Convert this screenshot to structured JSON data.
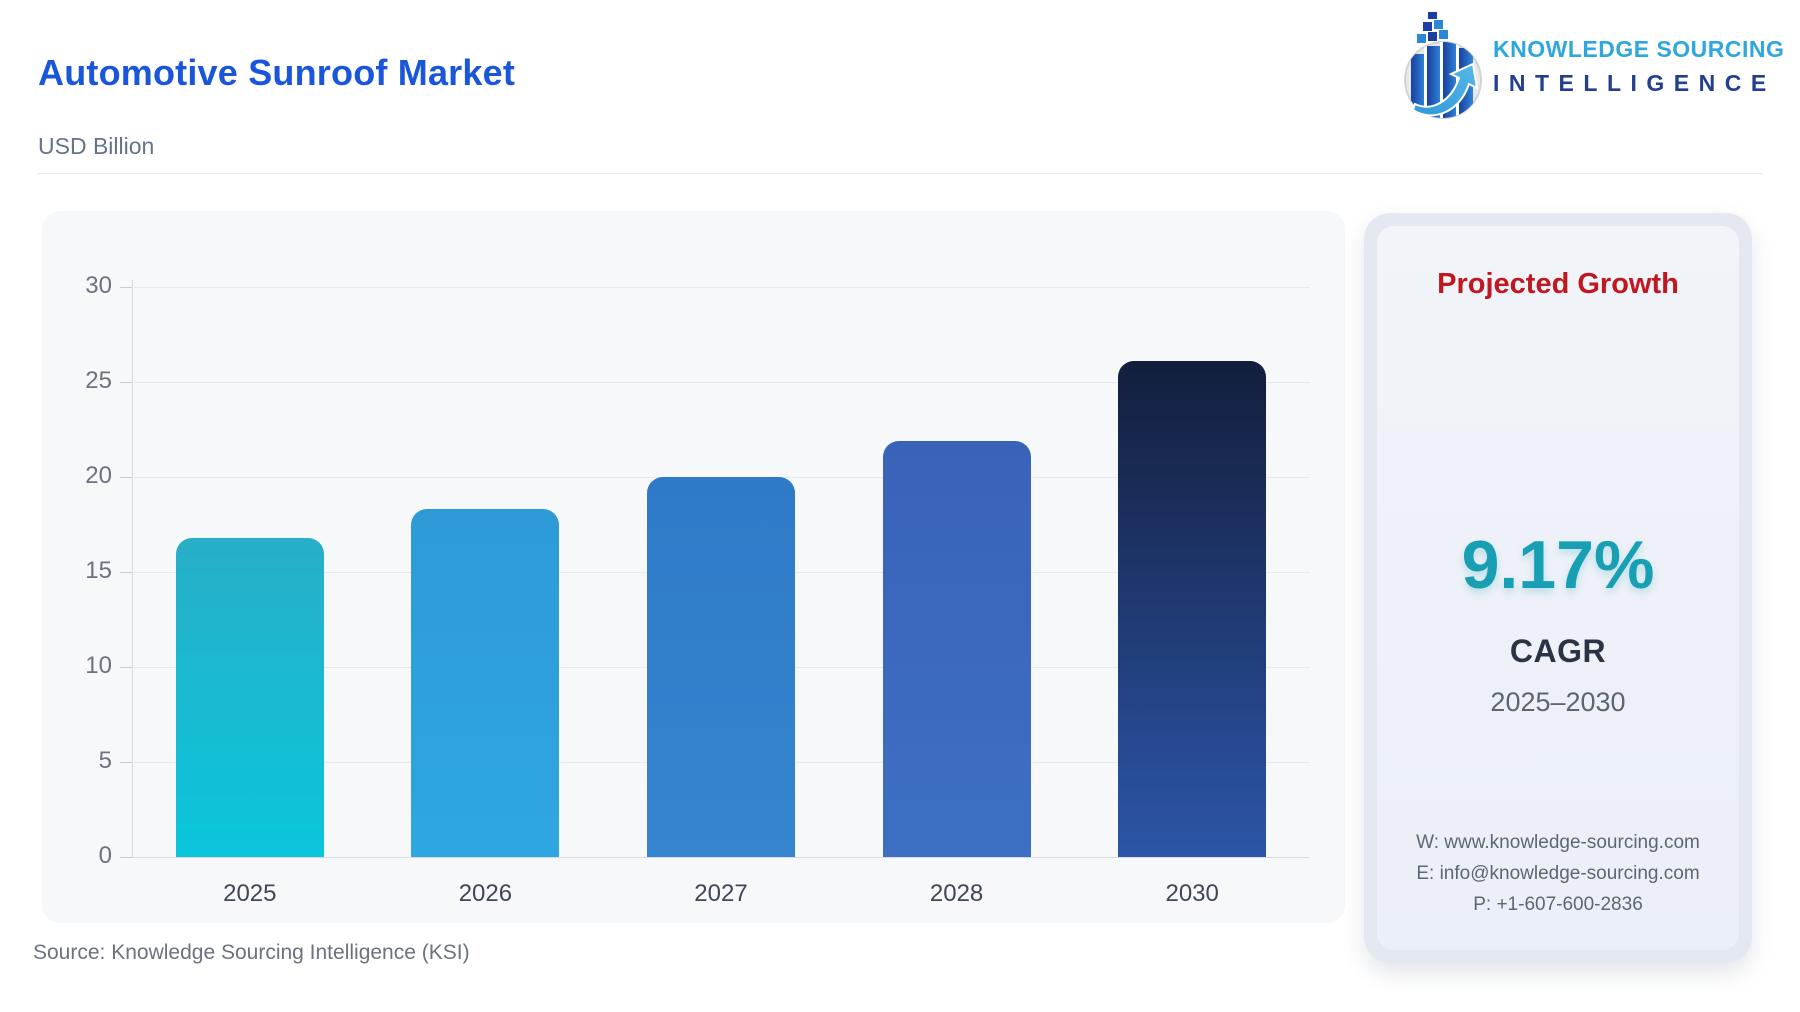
{
  "header": {
    "title": "Automotive Sunroof Market",
    "subtitle": "USD Billion"
  },
  "logo": {
    "line1": "KNOWLEDGE SOURCING",
    "line2": "INTELLIGENCE"
  },
  "chart_data": {
    "type": "bar",
    "title": "Automotive Sunroof Market",
    "ylabel": "USD Billion",
    "categories": [
      "2025",
      "2026",
      "2027",
      "2028",
      "2030"
    ],
    "values": [
      16.8,
      18.3,
      20.0,
      21.9,
      26.1
    ],
    "ylim": [
      0,
      30
    ],
    "ytick_interval": 5,
    "grid": true,
    "legend": "none",
    "bar_colors": [
      {
        "top": "#28aec8",
        "bottom": "#0ac6da"
      },
      {
        "top": "#2e9ad8",
        "bottom": "#2ea7e0"
      },
      {
        "top": "#2f7ac8",
        "bottom": "#3585d0"
      },
      {
        "top": "#3963b8",
        "bottom": "#3e6fc2"
      },
      {
        "top": "#131e3c",
        "bottom": "#2c55a8"
      }
    ]
  },
  "panel": {
    "title": "Projected Growth",
    "title_color": "#c01820",
    "value": "9.17%",
    "value_color": "#189fb4",
    "metric": "CAGR",
    "period": "2025–2030",
    "contact": {
      "website": "W: www.knowledge-sourcing.com",
      "email": "E: info@knowledge-sourcing.com",
      "phone": "P: +1-607-600-2836"
    }
  },
  "source": "Source: Knowledge Sourcing Intelligence (KSI)"
}
